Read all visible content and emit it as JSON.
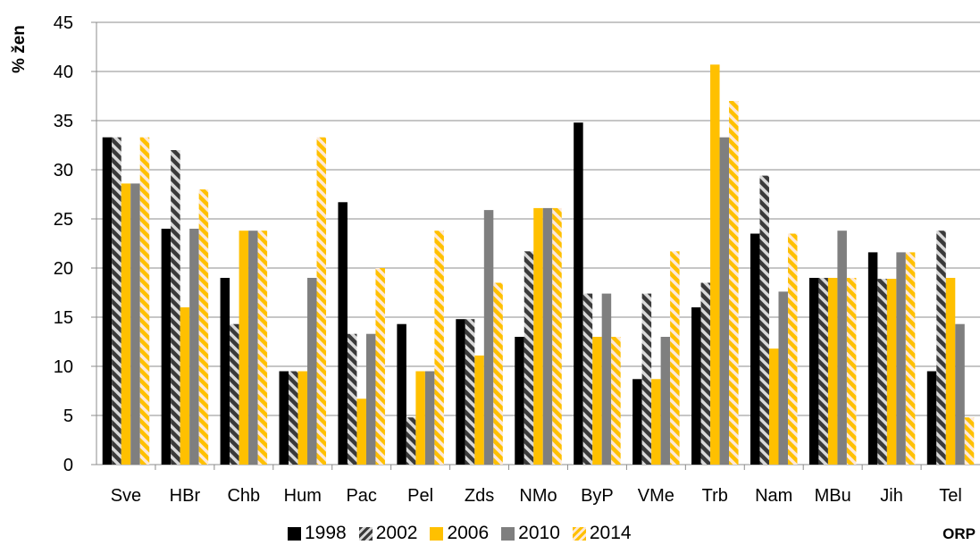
{
  "chart_data": {
    "type": "bar",
    "title": "",
    "xlabel": "ORP",
    "ylabel": "% žen",
    "ylim": [
      0,
      45
    ],
    "yticks": [
      0,
      5,
      10,
      15,
      20,
      25,
      30,
      35,
      40,
      45
    ],
    "grid": "horizontal",
    "legend_position": "bottom",
    "categories": [
      "Sve",
      "HBr",
      "Chb",
      "Hum",
      "Pac",
      "Pel",
      "Zds",
      "NMo",
      "ByP",
      "VMe",
      "Trb",
      "Nam",
      "MBu",
      "Jih",
      "Tel"
    ],
    "series": [
      {
        "name": "1998",
        "color": "#000000",
        "pattern": "solid",
        "values": [
          33.3,
          24.0,
          19.0,
          9.5,
          26.7,
          14.3,
          14.8,
          13.0,
          34.8,
          8.7,
          16.0,
          23.5,
          19.0,
          21.6,
          9.5
        ]
      },
      {
        "name": "2002",
        "color": "#3a3a3a",
        "pattern": "diagonal-stripes-gray",
        "values": [
          33.3,
          32.0,
          14.3,
          9.5,
          13.3,
          4.8,
          14.8,
          21.7,
          17.4,
          17.4,
          18.5,
          29.4,
          19.0,
          18.9,
          23.8
        ]
      },
      {
        "name": "2006",
        "color": "#ffc000",
        "pattern": "solid",
        "values": [
          28.6,
          16.0,
          23.8,
          9.5,
          6.7,
          9.5,
          11.1,
          26.1,
          13.0,
          8.7,
          40.7,
          11.8,
          19.0,
          18.9,
          19.0
        ]
      },
      {
        "name": "2010",
        "color": "#7f7f7f",
        "pattern": "solid",
        "values": [
          28.6,
          24.0,
          23.8,
          19.0,
          13.3,
          9.5,
          25.9,
          26.1,
          17.4,
          13.0,
          33.3,
          17.6,
          23.8,
          21.6,
          14.3
        ]
      },
      {
        "name": "2014",
        "color": "#ffc000",
        "pattern": "diagonal-stripes-orange",
        "values": [
          33.3,
          28.0,
          23.8,
          33.3,
          20.0,
          23.8,
          18.5,
          26.1,
          13.0,
          21.7,
          37.0,
          23.5,
          19.0,
          21.6,
          4.8
        ]
      }
    ]
  }
}
